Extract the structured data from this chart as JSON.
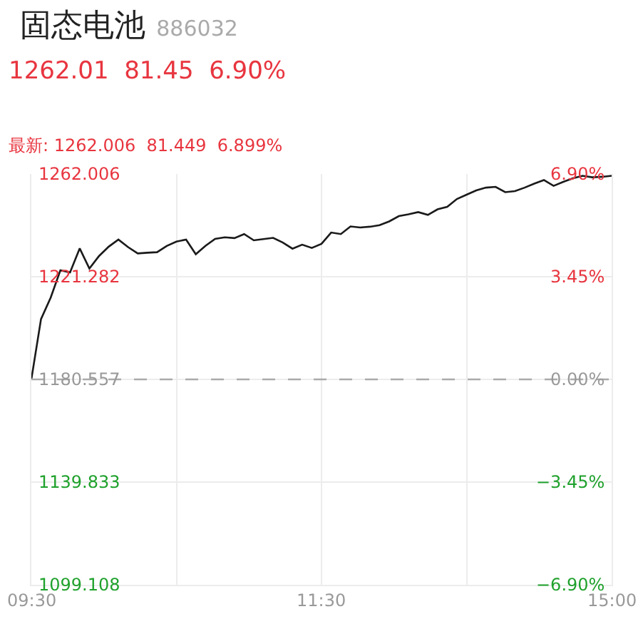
{
  "chart_data": {
    "type": "line",
    "title": "固态电池",
    "subtitle": "886032",
    "annotations": [
      "1262.01  81.45  6.90%",
      "最新: 1262.006  81.449  6.899%"
    ],
    "categories": [
      "09:30",
      null,
      null,
      null,
      null,
      null,
      null,
      null,
      null,
      null,
      null,
      null,
      null,
      null,
      null,
      null,
      null,
      null,
      null,
      null,
      null,
      null,
      null,
      null,
      null,
      null,
      null,
      null,
      null,
      null,
      "11:30",
      null,
      null,
      null,
      null,
      null,
      null,
      null,
      null,
      null,
      null,
      null,
      null,
      null,
      null,
      null,
      null,
      null,
      null,
      null,
      null,
      null,
      null,
      null,
      null,
      null,
      null,
      null,
      null,
      null,
      "15:00"
    ],
    "series": [
      {
        "color": "#1a1a1a",
        "values": [
          1180.6,
          1204.5,
          1213.0,
          1223.8,
          1223.0,
          1232.5,
          1224.5,
          1229.5,
          1233.2,
          1236.0,
          1233.0,
          1230.5,
          1230.8,
          1231.0,
          1233.5,
          1235.2,
          1236.0,
          1230.2,
          1233.5,
          1236.3,
          1236.9,
          1236.6,
          1238.2,
          1235.7,
          1236.2,
          1236.7,
          1234.8,
          1232.4,
          1234.0,
          1232.7,
          1234.3,
          1238.8,
          1238.2,
          1241.2,
          1240.8,
          1241.1,
          1241.7,
          1243.2,
          1245.3,
          1246.0,
          1246.9,
          1245.8,
          1248.0,
          1249.0,
          1252.1,
          1253.8,
          1255.5,
          1256.6,
          1256.9,
          1254.8,
          1255.2,
          1256.6,
          1258.2,
          1259.6,
          1257.3,
          1258.9,
          1260.3,
          1261.3,
          1260.7,
          1260.9,
          1261.3
        ]
      }
    ],
    "ylim": [
      1099.108,
      1262.006
    ],
    "yticks": [
      1099.108,
      1139.833,
      1180.557,
      1221.282,
      1262.006
    ],
    "y2lim": [
      -6.9,
      6.9
    ],
    "y2ticks": [
      {
        "value": -6.9,
        "label": "−6.90%"
      },
      {
        "value": -3.45,
        "label": "−3.45%"
      },
      {
        "value": 0,
        "label": "0.00%"
      },
      {
        "value": 3.45,
        "label": "3.45%"
      },
      {
        "value": 6.9,
        "label": "6.90%"
      }
    ],
    "ref_lines": [
      {
        "axis": "y",
        "value": 1180.557,
        "label": null,
        "color": "#aaaaaa",
        "line_style": "dashed"
      }
    ],
    "grid": true,
    "marker": "none",
    "line_style": "solid"
  }
}
